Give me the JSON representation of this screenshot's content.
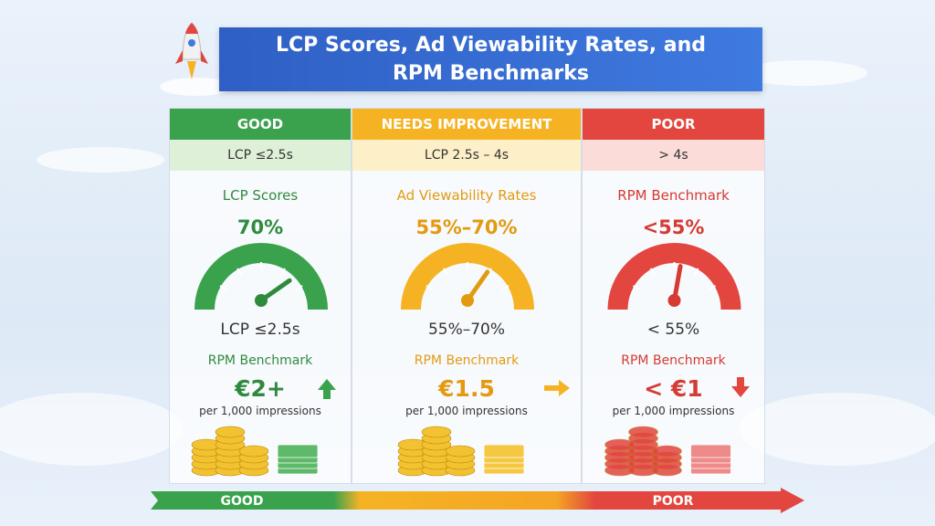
{
  "title": {
    "lines": [
      "LCP Scores, Ad Viewability Rates, and",
      "RPM Benchmarks"
    ]
  },
  "columns": [
    {
      "header": "GOOD",
      "threshold": "LCP ≤2.5s",
      "metric": "LCP Scores",
      "value": "70%",
      "gauge_label": "LCP ≤2.5s",
      "rpm_label": "RPM Benchmark",
      "rpm": "€2+",
      "rpm_note": "per 1,000 impressions"
    },
    {
      "header": "NEEDS IMPROVEMENT",
      "threshold": "LCP 2.5s – 4s",
      "metric": "Ad Viewability Rates",
      "value": "55%–70%",
      "gauge_label": "55%–70%",
      "rpm_label": "RPM Benchmark",
      "rpm": "€1.5",
      "rpm_note": "per 1,000 impressions"
    },
    {
      "header": "POOR",
      "threshold": "> 4s",
      "metric": "RPM Benchmark",
      "value": "<55%",
      "gauge_label": "< 55%",
      "rpm_label": "RPM Benchmark",
      "rpm": "< €1",
      "rpm_note": "per 1,000 impressions"
    }
  ],
  "footer": {
    "start": "GOOD",
    "end": "POOR"
  }
}
